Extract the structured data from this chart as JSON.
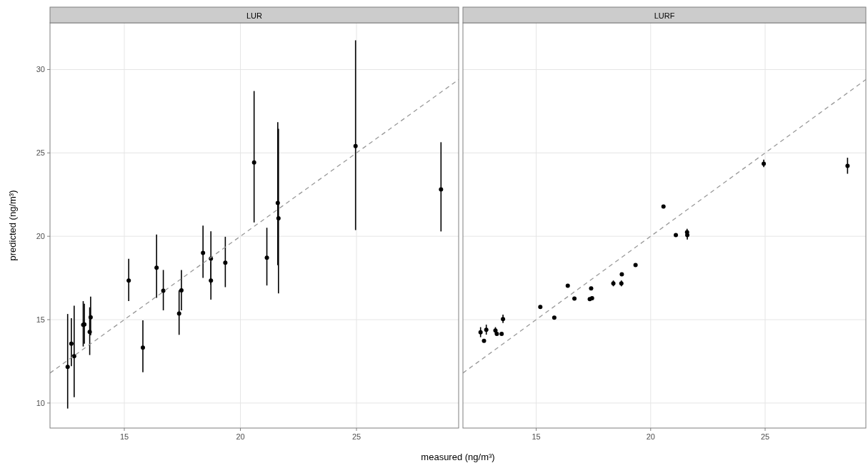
{
  "chart_data": [
    {
      "type": "scatter",
      "title": "LUR",
      "xlabel": "measured (ng/m³)",
      "ylabel": "predicted (ng/m³)",
      "xlim": [
        11.8,
        29.4
      ],
      "ylim": [
        8.5,
        32.8
      ],
      "xticks": [
        15,
        20,
        25
      ],
      "yticks": [
        10,
        15,
        20,
        25,
        30
      ],
      "grid": true,
      "series": [
        {
          "marker": "circle",
          "color": "#000000",
          "x": [
            12.56,
            12.72,
            12.84,
            13.23,
            13.28,
            13.51,
            13.55,
            15.19,
            15.8,
            16.39,
            16.68,
            17.36,
            17.46,
            18.39,
            18.73,
            18.73,
            19.35,
            20.59,
            21.14,
            21.61,
            21.64,
            24.96,
            28.64
          ],
          "values": [
            12.17,
            13.56,
            12.81,
            14.69,
            14.71,
            14.26,
            15.14,
            17.34,
            13.32,
            18.11,
            16.74,
            15.37,
            16.76,
            19.0,
            18.66,
            17.34,
            18.41,
            24.43,
            18.71,
            22.0,
            21.08,
            25.41,
            22.81
          ],
          "errors": [
            [
              9.67,
              15.34
            ],
            [
              12.21,
              15.09
            ],
            [
              10.35,
              15.84
            ],
            [
              13.39,
              16.11
            ],
            [
              13.56,
              15.95
            ],
            [
              12.88,
              15.74
            ],
            [
              14.06,
              16.38
            ],
            [
              16.12,
              18.65
            ],
            [
              11.85,
              14.96
            ],
            [
              16.31,
              20.1
            ],
            [
              15.56,
              17.98
            ],
            [
              14.09,
              16.76
            ],
            [
              15.56,
              17.98
            ],
            [
              17.51,
              20.64
            ],
            [
              17.1,
              20.3
            ],
            [
              16.2,
              18.5
            ],
            [
              16.95,
              19.97
            ],
            [
              20.83,
              28.71
            ],
            [
              17.05,
              20.51
            ],
            [
              18.26,
              26.84
            ],
            [
              16.58,
              26.45
            ],
            [
              20.37,
              31.75
            ],
            [
              20.29,
              25.64
            ]
          ]
        },
        {
          "type": "line",
          "color": "#999999",
          "line_style": "dashed",
          "x": [
            11.8,
            29.4
          ],
          "values": [
            11.8,
            29.4
          ]
        }
      ]
    },
    {
      "type": "scatter",
      "title": "LURF",
      "xlim": [
        11.8,
        29.4
      ],
      "ylim": [
        8.5,
        32.8
      ],
      "xticks": [
        15,
        20,
        25
      ],
      "yticks": [
        10,
        15,
        20,
        25,
        30
      ],
      "tick_labels": "x",
      "grid": true,
      "series": [
        {
          "marker": "circle",
          "color": "#000000",
          "x": [
            12.57,
            12.72,
            12.82,
            13.22,
            13.28,
            13.49,
            13.55,
            15.18,
            15.79,
            16.38,
            16.67,
            17.34,
            17.4,
            17.44,
            18.37,
            18.72,
            18.74,
            19.34,
            20.56,
            21.1,
            21.59,
            21.6,
            24.94,
            28.6
          ],
          "values": [
            14.24,
            13.73,
            14.39,
            14.35,
            14.15,
            14.15,
            15.03,
            15.76,
            15.12,
            17.04,
            16.27,
            16.23,
            16.87,
            16.29,
            17.17,
            17.17,
            17.72,
            18.28,
            21.78,
            20.07,
            20.24,
            20.07,
            24.35,
            24.22
          ],
          "errors": [
            [
              13.95,
              14.55
            ],
            null,
            [
              14.1,
              14.7
            ],
            [
              14.15,
              14.55
            ],
            null,
            null,
            [
              14.8,
              15.3
            ],
            null,
            null,
            null,
            null,
            null,
            null,
            null,
            [
              17.0,
              17.35
            ],
            [
              17.0,
              17.35
            ],
            null,
            null,
            null,
            null,
            [
              20.05,
              20.45
            ],
            [
              19.8,
              20.35
            ],
            [
              24.15,
              24.6
            ],
            [
              23.75,
              24.71
            ]
          ]
        },
        {
          "type": "line",
          "color": "#999999",
          "line_style": "dashed",
          "x": [
            11.8,
            29.4
          ],
          "values": [
            11.8,
            29.4
          ]
        }
      ]
    }
  ]
}
